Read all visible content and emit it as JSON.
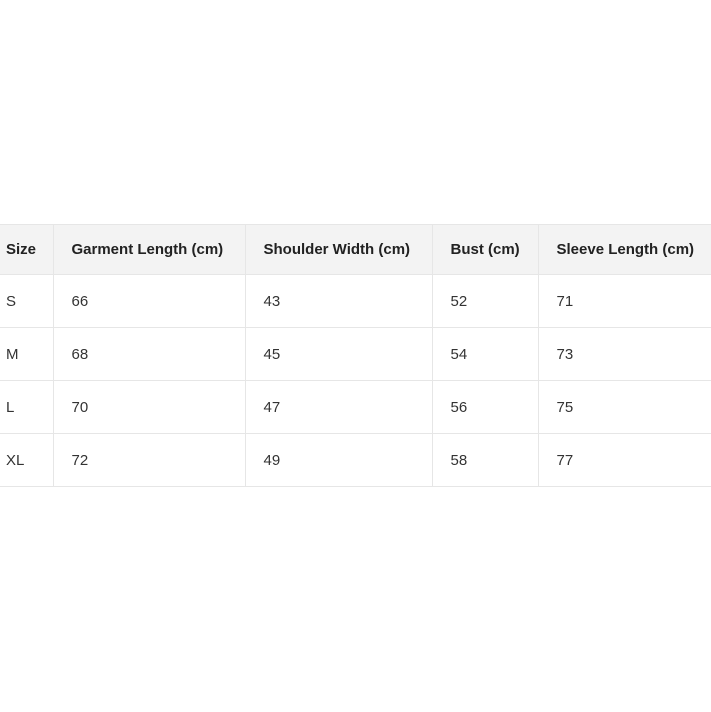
{
  "table": {
    "header": [
      "Size",
      "Garment Length (cm)",
      "Shoulder Width (cm)",
      "Bust (cm)",
      "Sleeve Length (cm)"
    ],
    "rows": [
      [
        "S",
        66,
        43,
        52,
        71
      ],
      [
        "M",
        68,
        45,
        54,
        73
      ],
      [
        "L",
        70,
        47,
        56,
        75
      ],
      [
        "XL",
        72,
        49,
        58,
        77
      ]
    ]
  }
}
